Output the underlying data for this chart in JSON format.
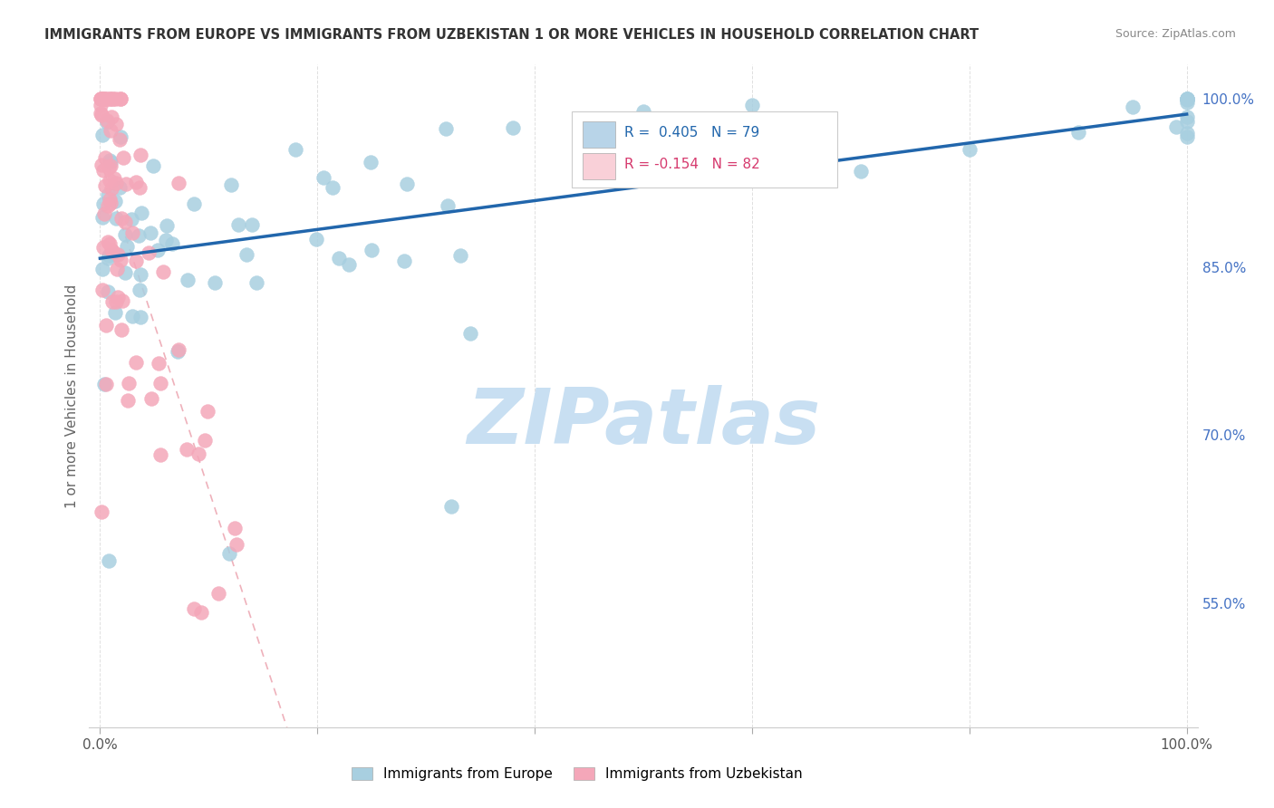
{
  "title": "IMMIGRANTS FROM EUROPE VS IMMIGRANTS FROM UZBEKISTAN 1 OR MORE VEHICLES IN HOUSEHOLD CORRELATION CHART",
  "source": "Source: ZipAtlas.com",
  "ylabel": "1 or more Vehicles in Household",
  "xlim": [
    -1,
    101
  ],
  "ylim": [
    44,
    103
  ],
  "xtick_positions": [
    0,
    20,
    40,
    60,
    80,
    100
  ],
  "xticklabels": [
    "0.0%",
    "",
    "",
    "",
    "",
    "100.0%"
  ],
  "ytick_positions": [
    55,
    70,
    85,
    100
  ],
  "ytick_labels": [
    "55.0%",
    "70.0%",
    "85.0%",
    "100.0%"
  ],
  "legend_europe_label": "Immigrants from Europe",
  "legend_uzbekistan_label": "Immigrants from Uzbekistan",
  "R_europe": 0.405,
  "N_europe": 79,
  "R_uzbekistan": -0.154,
  "N_uzbekistan": 82,
  "europe_scatter_color": "#a8cfe0",
  "uzbekistan_scatter_color": "#f4a7b9",
  "europe_line_color": "#2166ac",
  "uzbekistan_line_color": "#e8909e",
  "R_europe_color": "#2166ac",
  "R_uzbekistan_color": "#d63a6e",
  "watermark_color": "#c8dff2",
  "grid_color": "#e0e0e0",
  "title_color": "#333333",
  "yaxis_tick_color": "#4472c4",
  "legend_box_color": "#f9d0d8",
  "legend_europe_box_color": "#b8d4e8"
}
